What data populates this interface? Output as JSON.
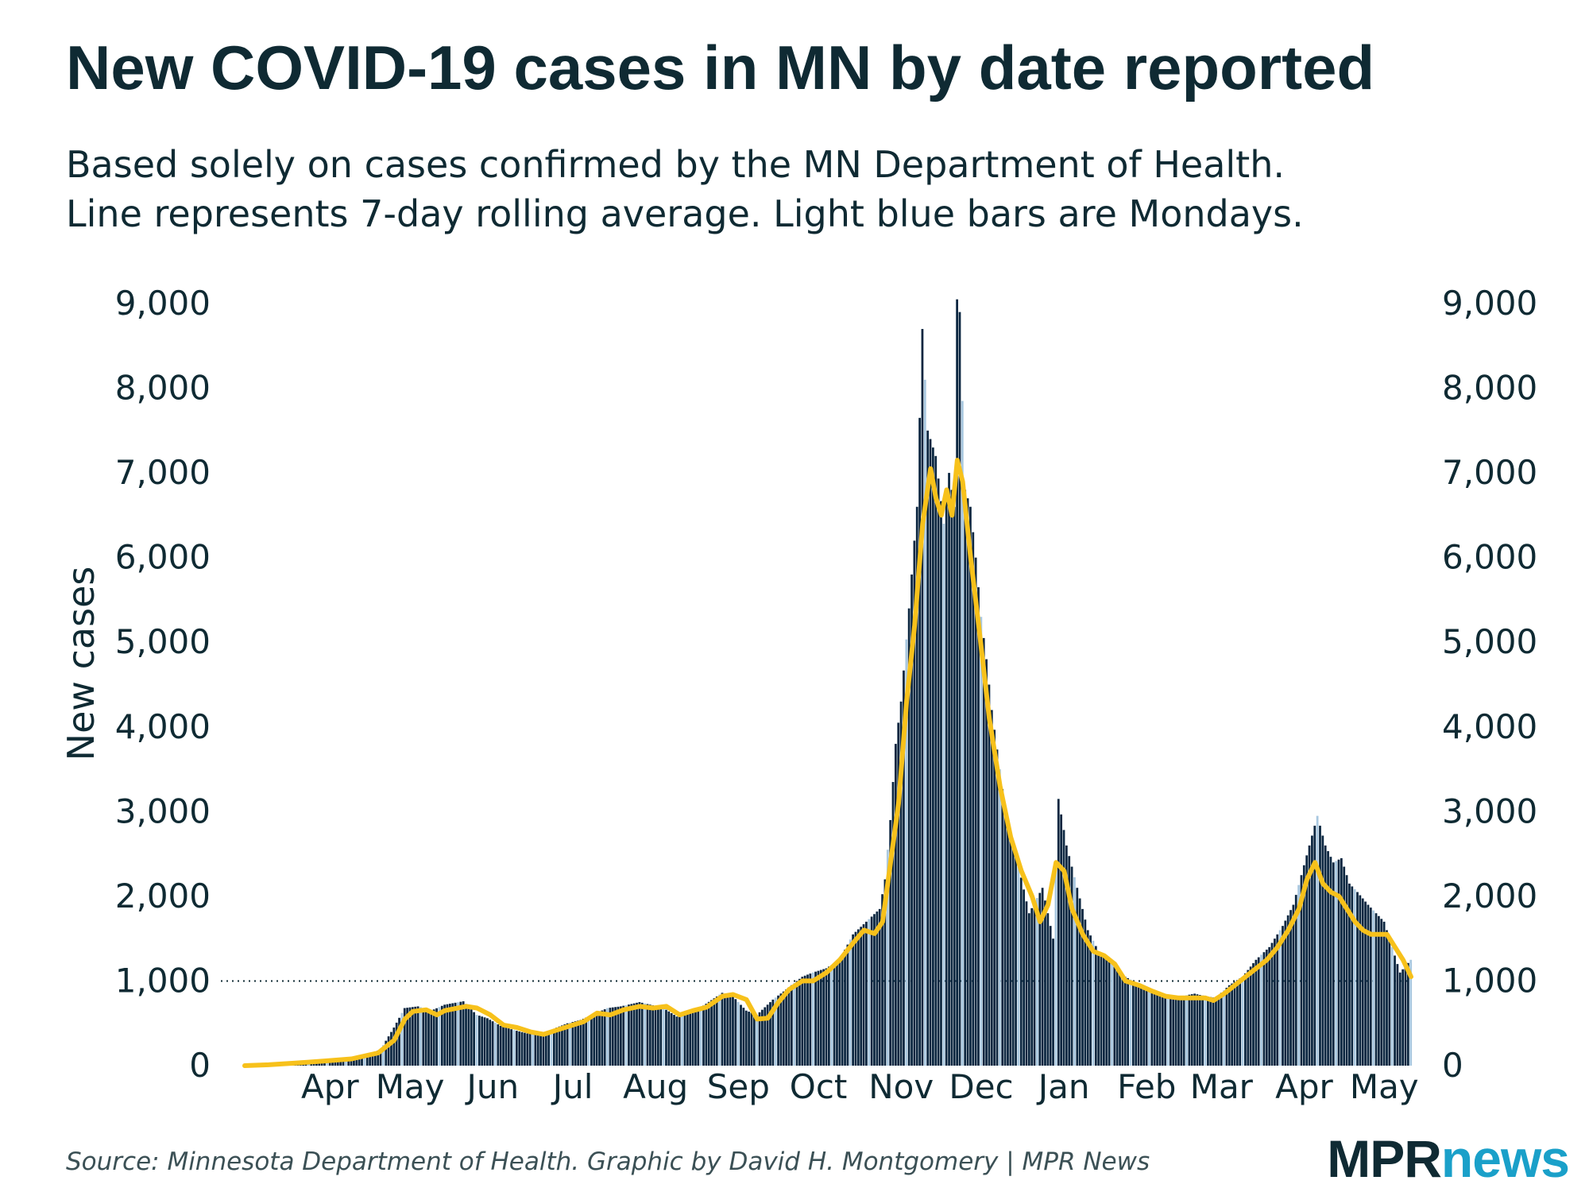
{
  "title": "New COVID-19 cases in MN by date reported",
  "subtitle": [
    "Based solely on cases confirmed by the MN Department of Health.",
    "Line represents 7-day rolling average. Light blue bars are Mondays."
  ],
  "source": "Source: Minnesota Department of Health. Graphic by David H. Montgomery | MPR News",
  "logo": {
    "mpr": "MPR",
    "news": "news"
  },
  "colors": {
    "bar": "#0b2640",
    "monday_bar": "#a9c8e0",
    "avg_line": "#f7c11b",
    "text": "#0f2a33",
    "reference_line": "#0f2a33"
  },
  "chart_data": {
    "type": "bar",
    "title": "New COVID-19 cases in MN by date reported",
    "ylabel": "New cases",
    "xlabel": "",
    "ylim": [
      0,
      9000
    ],
    "yticks": [
      0,
      1000,
      2000,
      3000,
      4000,
      5000,
      6000,
      7000,
      8000,
      9000
    ],
    "ytick_labels": [
      "0",
      "1,000",
      "2,000",
      "3,000",
      "4,000",
      "5,000",
      "6,000",
      "7,000",
      "8,000",
      "9,000"
    ],
    "axes": "y-axis on both left and right",
    "reference_line": {
      "y": 1000,
      "style": "dotted"
    },
    "x_range": [
      "2020-03-06",
      "2021-05-17"
    ],
    "month_ticks": [
      {
        "label": "Apr",
        "date": "2020-04-01"
      },
      {
        "label": "May",
        "date": "2020-05-01"
      },
      {
        "label": "Jun",
        "date": "2020-06-01"
      },
      {
        "label": "Jul",
        "date": "2020-07-01"
      },
      {
        "label": "Aug",
        "date": "2020-08-01"
      },
      {
        "label": "Sep",
        "date": "2020-09-01"
      },
      {
        "label": "Oct",
        "date": "2020-10-01"
      },
      {
        "label": "Nov",
        "date": "2020-11-01"
      },
      {
        "label": "Dec",
        "date": "2020-12-01"
      },
      {
        "label": "Jan",
        "date": "2021-01-01"
      },
      {
        "label": "Feb",
        "date": "2021-02-01"
      },
      {
        "label": "Mar",
        "date": "2021-03-01"
      },
      {
        "label": "Apr",
        "date": "2021-04-01"
      },
      {
        "label": "May",
        "date": "2021-05-01"
      }
    ],
    "series": [
      {
        "name": "New cases (daily, by date reported)",
        "kind": "bars",
        "note": "Light blue bars are Mondays",
        "points": [
          [
            "2020-03-06",
            1
          ],
          [
            "2020-03-15",
            14
          ],
          [
            "2020-03-25",
            40
          ],
          [
            "2020-04-01",
            60
          ],
          [
            "2020-04-10",
            70
          ],
          [
            "2020-04-20",
            120
          ],
          [
            "2020-04-26",
            190
          ],
          [
            "2020-05-01",
            450
          ],
          [
            "2020-05-05",
            680
          ],
          [
            "2020-05-10",
            700
          ],
          [
            "2020-05-15",
            650
          ],
          [
            "2020-05-20",
            720
          ],
          [
            "2020-05-27",
            760
          ],
          [
            "2020-06-01",
            600
          ],
          [
            "2020-06-05",
            560
          ],
          [
            "2020-06-10",
            470
          ],
          [
            "2020-06-15",
            420
          ],
          [
            "2020-06-20",
            380
          ],
          [
            "2020-06-25",
            360
          ],
          [
            "2020-07-01",
            450
          ],
          [
            "2020-07-05",
            500
          ],
          [
            "2020-07-10",
            540
          ],
          [
            "2020-07-15",
            610
          ],
          [
            "2020-07-20",
            680
          ],
          [
            "2020-07-25",
            700
          ],
          [
            "2020-08-01",
            750
          ],
          [
            "2020-08-05",
            720
          ],
          [
            "2020-08-10",
            680
          ],
          [
            "2020-08-15",
            580
          ],
          [
            "2020-08-20",
            650
          ],
          [
            "2020-08-25",
            710
          ],
          [
            "2020-09-01",
            860
          ],
          [
            "2020-09-05",
            820
          ],
          [
            "2020-09-10",
            650
          ],
          [
            "2020-09-14",
            600
          ],
          [
            "2020-09-20",
            780
          ],
          [
            "2020-09-25",
            900
          ],
          [
            "2020-10-01",
            1050
          ],
          [
            "2020-10-05",
            1100
          ],
          [
            "2020-10-10",
            1150
          ],
          [
            "2020-10-15",
            1250
          ],
          [
            "2020-10-20",
            1550
          ],
          [
            "2020-10-25",
            1700
          ],
          [
            "2020-10-30",
            1850
          ],
          [
            "2020-11-01",
            2200
          ],
          [
            "2020-11-03",
            2900
          ],
          [
            "2020-11-05",
            3800
          ],
          [
            "2020-11-07",
            4300
          ],
          [
            "2020-11-10",
            5400
          ],
          [
            "2020-11-13",
            6600
          ],
          [
            "2020-11-15",
            8700
          ],
          [
            "2020-11-17",
            7500
          ],
          [
            "2020-11-20",
            7200
          ],
          [
            "2020-11-23",
            6400
          ],
          [
            "2020-11-25",
            7000
          ],
          [
            "2020-11-27",
            6600
          ],
          [
            "2020-11-28",
            9050
          ],
          [
            "2020-11-29",
            8900
          ],
          [
            "2020-12-01",
            6800
          ],
          [
            "2020-12-03",
            6600
          ],
          [
            "2020-12-05",
            6000
          ],
          [
            "2020-12-07",
            5300
          ],
          [
            "2020-12-09",
            4800
          ],
          [
            "2020-12-11",
            4200
          ],
          [
            "2020-12-14",
            3500
          ],
          [
            "2020-12-17",
            2800
          ],
          [
            "2020-12-20",
            2500
          ],
          [
            "2020-12-25",
            1800
          ],
          [
            "2020-12-30",
            2100
          ],
          [
            "2021-01-03",
            1500
          ],
          [
            "2021-01-05",
            3150
          ],
          [
            "2021-01-08",
            2600
          ],
          [
            "2021-01-12",
            2100
          ],
          [
            "2021-01-16",
            1600
          ],
          [
            "2021-01-20",
            1350
          ],
          [
            "2021-01-25",
            1200
          ],
          [
            "2021-01-30",
            1050
          ],
          [
            "2021-02-05",
            950
          ],
          [
            "2021-02-10",
            880
          ],
          [
            "2021-02-15",
            800
          ],
          [
            "2021-02-20",
            820
          ],
          [
            "2021-02-25",
            850
          ],
          [
            "2021-03-01",
            820
          ],
          [
            "2021-03-05",
            800
          ],
          [
            "2021-03-10",
            950
          ],
          [
            "2021-03-15",
            1050
          ],
          [
            "2021-03-20",
            1250
          ],
          [
            "2021-03-25",
            1400
          ],
          [
            "2021-03-30",
            1650
          ],
          [
            "2021-04-03",
            1900
          ],
          [
            "2021-04-06",
            2250
          ],
          [
            "2021-04-09",
            2600
          ],
          [
            "2021-04-12",
            2950
          ],
          [
            "2021-04-15",
            2600
          ],
          [
            "2021-04-18",
            2400
          ],
          [
            "2021-04-21",
            2450
          ],
          [
            "2021-04-24",
            2150
          ],
          [
            "2021-04-27",
            2050
          ],
          [
            "2021-05-01",
            1900
          ],
          [
            "2021-05-04",
            1800
          ],
          [
            "2021-05-07",
            1700
          ],
          [
            "2021-05-10",
            1400
          ],
          [
            "2021-05-13",
            1100
          ],
          [
            "2021-05-17",
            1250
          ]
        ]
      },
      {
        "name": "7-day rolling average",
        "kind": "line",
        "points": [
          [
            "2020-03-06",
            0
          ],
          [
            "2020-03-15",
            10
          ],
          [
            "2020-03-25",
            30
          ],
          [
            "2020-04-05",
            55
          ],
          [
            "2020-04-15",
            80
          ],
          [
            "2020-04-25",
            150
          ],
          [
            "2020-05-01",
            300
          ],
          [
            "2020-05-05",
            550
          ],
          [
            "2020-05-08",
            640
          ],
          [
            "2020-05-13",
            660
          ],
          [
            "2020-05-17",
            600
          ],
          [
            "2020-05-20",
            650
          ],
          [
            "2020-05-28",
            700
          ],
          [
            "2020-06-01",
            680
          ],
          [
            "2020-06-06",
            600
          ],
          [
            "2020-06-11",
            480
          ],
          [
            "2020-06-16",
            450
          ],
          [
            "2020-06-21",
            400
          ],
          [
            "2020-06-26",
            370
          ],
          [
            "2020-07-01",
            420
          ],
          [
            "2020-07-06",
            470
          ],
          [
            "2020-07-11",
            520
          ],
          [
            "2020-07-16",
            620
          ],
          [
            "2020-07-21",
            600
          ],
          [
            "2020-07-26",
            660
          ],
          [
            "2020-08-01",
            700
          ],
          [
            "2020-08-06",
            680
          ],
          [
            "2020-08-11",
            700
          ],
          [
            "2020-08-16",
            600
          ],
          [
            "2020-08-21",
            650
          ],
          [
            "2020-08-26",
            690
          ],
          [
            "2020-09-01",
            820
          ],
          [
            "2020-09-05",
            840
          ],
          [
            "2020-09-10",
            780
          ],
          [
            "2020-09-14",
            550
          ],
          [
            "2020-09-18",
            560
          ],
          [
            "2020-09-22",
            750
          ],
          [
            "2020-09-26",
            900
          ],
          [
            "2020-10-01",
            1000
          ],
          [
            "2020-10-05",
            1000
          ],
          [
            "2020-10-10",
            1100
          ],
          [
            "2020-10-15",
            1250
          ],
          [
            "2020-10-20",
            1450
          ],
          [
            "2020-10-24",
            1600
          ],
          [
            "2020-10-28",
            1560
          ],
          [
            "2020-10-31",
            1700
          ],
          [
            "2020-11-03",
            2400
          ],
          [
            "2020-11-06",
            3100
          ],
          [
            "2020-11-09",
            4300
          ],
          [
            "2020-11-12",
            5200
          ],
          [
            "2020-11-15",
            6400
          ],
          [
            "2020-11-18",
            7050
          ],
          [
            "2020-11-20",
            6700
          ],
          [
            "2020-11-22",
            6500
          ],
          [
            "2020-11-24",
            6800
          ],
          [
            "2020-11-26",
            6500
          ],
          [
            "2020-11-28",
            7150
          ],
          [
            "2020-11-30",
            6900
          ],
          [
            "2020-12-03",
            6000
          ],
          [
            "2020-12-06",
            5200
          ],
          [
            "2020-12-10",
            4100
          ],
          [
            "2020-12-14",
            3300
          ],
          [
            "2020-12-18",
            2700
          ],
          [
            "2020-12-22",
            2300
          ],
          [
            "2020-12-26",
            2000
          ],
          [
            "2020-12-29",
            1700
          ],
          [
            "2021-01-01",
            1900
          ],
          [
            "2021-01-04",
            2400
          ],
          [
            "2021-01-07",
            2300
          ],
          [
            "2021-01-10",
            1850
          ],
          [
            "2021-01-14",
            1550
          ],
          [
            "2021-01-18",
            1350
          ],
          [
            "2021-01-22",
            1300
          ],
          [
            "2021-01-26",
            1200
          ],
          [
            "2021-01-30",
            1000
          ],
          [
            "2021-02-04",
            950
          ],
          [
            "2021-02-09",
            880
          ],
          [
            "2021-02-14",
            820
          ],
          [
            "2021-02-19",
            800
          ],
          [
            "2021-02-24",
            800
          ],
          [
            "2021-03-01",
            800
          ],
          [
            "2021-03-04",
            770
          ],
          [
            "2021-03-08",
            850
          ],
          [
            "2021-03-12",
            950
          ],
          [
            "2021-03-16",
            1050
          ],
          [
            "2021-03-20",
            1150
          ],
          [
            "2021-03-24",
            1250
          ],
          [
            "2021-03-28",
            1400
          ],
          [
            "2021-04-01",
            1600
          ],
          [
            "2021-04-05",
            1850
          ],
          [
            "2021-04-08",
            2200
          ],
          [
            "2021-04-11",
            2400
          ],
          [
            "2021-04-14",
            2150
          ],
          [
            "2021-04-17",
            2050
          ],
          [
            "2021-04-20",
            2000
          ],
          [
            "2021-04-23",
            1850
          ],
          [
            "2021-04-26",
            1700
          ],
          [
            "2021-04-29",
            1600
          ],
          [
            "2021-05-02",
            1550
          ],
          [
            "2021-05-05",
            1550
          ],
          [
            "2021-05-08",
            1550
          ],
          [
            "2021-05-11",
            1400
          ],
          [
            "2021-05-14",
            1250
          ],
          [
            "2021-05-17",
            1050
          ]
        ]
      }
    ]
  }
}
